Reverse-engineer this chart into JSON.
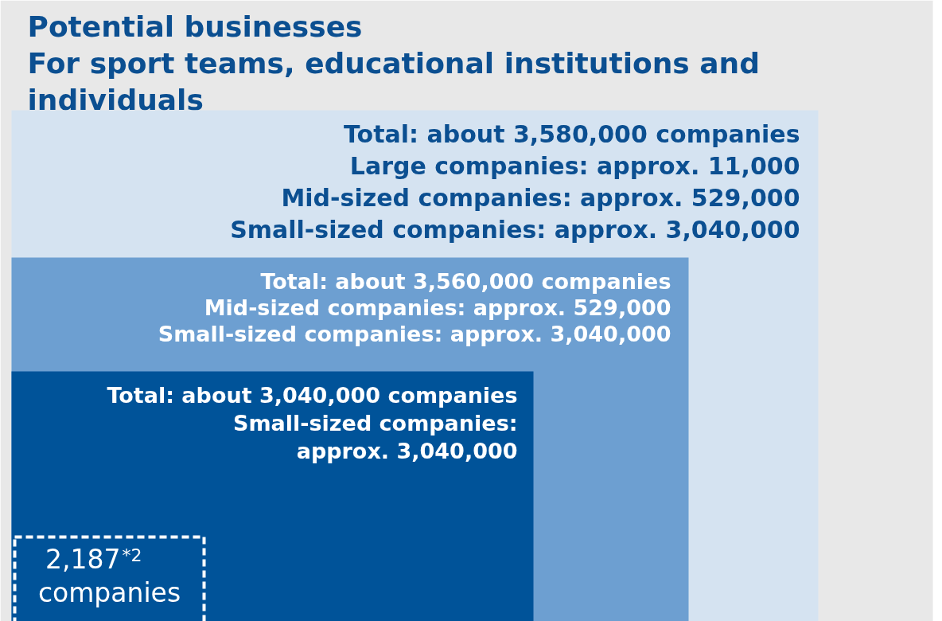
{
  "chart_data": {
    "type": "other",
    "title": "Potential businesses\nFor sport teams, educational institutions and\nindividuals",
    "categories": [
      null,
      null,
      null,
      null
    ],
    "values": [
      3580000,
      3560000,
      3040000,
      2187
    ],
    "value_labels": [
      "Total: about 3,580,000 companies",
      "Total: about 3,560,000 companies",
      "Total: about 3,040,000 companies",
      "2,187$^{*2}$\ncompanies"
    ],
    "annotations": [
      "Large companies: approx. 11,000\nMid-sized companies: approx. 529,000\nSmall-sized companies: approx. 3,040,000",
      "Mid-sized companies: approx. 529,000\nSmall-sized companies: approx. 3,040,000",
      "Small-sized companies:\napprox. 3,040,000"
    ],
    "colors": [
      "#d5e3f1",
      "#6d9fd1",
      "#005399",
      "#005399"
    ]
  }
}
